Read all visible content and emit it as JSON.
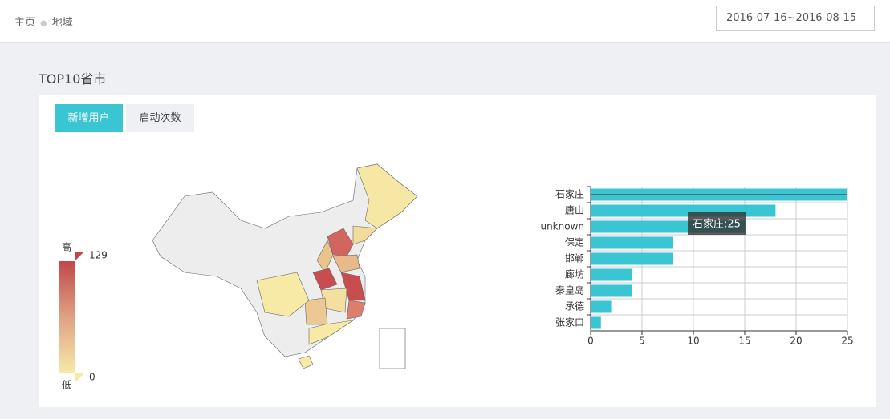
{
  "header": {
    "breadcrumb": [
      "主页",
      "地域"
    ],
    "date_range": "2016-07-16~2016-08-15"
  },
  "section_title": "TOP10省市",
  "tabs": [
    "新增用户",
    "启动次数"
  ],
  "visual_map": {
    "high_label": "高",
    "low_label": "低",
    "max": 129,
    "min": 0
  },
  "chart_data": {
    "type": "bar",
    "orientation": "horizontal",
    "categories": [
      "石家庄",
      "唐山",
      "unknown",
      "保定",
      "邯郸",
      "廊坊",
      "秦皇岛",
      "承德",
      "张家口"
    ],
    "values": [
      25,
      18,
      15,
      8,
      8,
      4,
      4,
      2,
      1
    ],
    "color": "#3ac5d3",
    "xlim": [
      0,
      25
    ],
    "xticks": [
      0,
      5,
      10,
      15,
      20,
      25
    ],
    "grid": true,
    "tooltip": "石家庄:25"
  }
}
